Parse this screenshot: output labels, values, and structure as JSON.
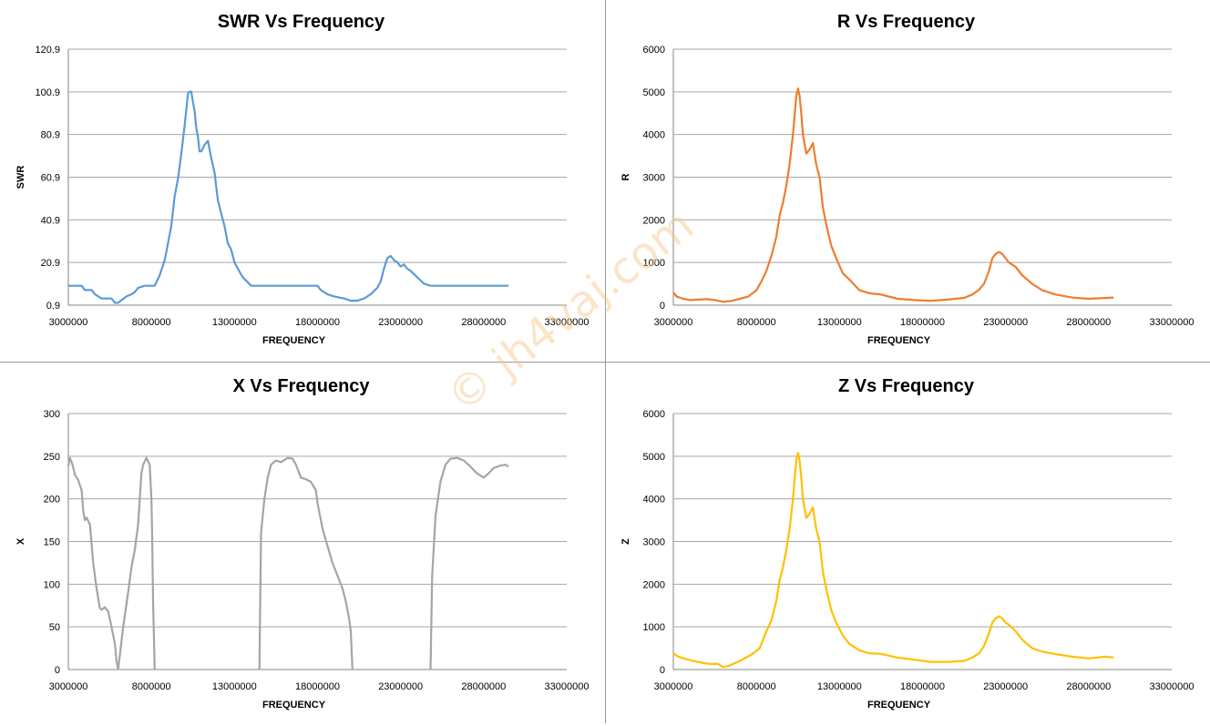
{
  "watermark": "© jh4vaj.com",
  "chart_data": [
    {
      "id": "swr",
      "type": "line",
      "title": "SWR Vs Frequency",
      "xlabel": "FREQUENCY",
      "ylabel": "SWR",
      "xlim": [
        3000000,
        33000000
      ],
      "ylim": [
        0.9,
        120.9
      ],
      "xticks": [
        "3000000",
        "8000000",
        "13000000",
        "18000000",
        "23000000",
        "28000000",
        "33000000"
      ],
      "yticks": [
        "0.9",
        "20.9",
        "40.9",
        "60.9",
        "80.9",
        "100.9",
        "120.9"
      ],
      "grid": true,
      "color": "#5b9bd5",
      "series": [
        {
          "x": [
            3000000,
            3800000,
            4000000,
            4400000,
            4600000,
            5000000,
            5600000,
            5800000,
            6000000,
            6500000,
            6800000,
            7000000,
            7200000,
            7600000,
            8000000,
            8200000,
            8500000,
            8800000,
            9000000,
            9200000,
            9400000,
            9600000,
            9800000,
            10000000,
            10200000,
            10300000,
            10400000,
            10500000,
            10600000,
            10700000,
            10800000,
            10900000,
            11000000,
            11200000,
            11400000,
            11600000,
            11800000,
            12000000,
            12200000,
            12400000,
            12600000,
            12800000,
            13000000,
            13200000,
            13500000,
            14000000,
            15000000,
            16000000,
            17000000,
            18000000,
            18200000,
            18600000,
            19000000,
            19600000,
            20000000,
            20400000,
            20800000,
            21200000,
            21600000,
            21800000,
            22000000,
            22200000,
            22400000,
            22600000,
            22800000,
            23000000,
            23200000,
            23400000,
            23600000,
            24000000,
            24400000,
            24800000,
            26000000,
            28000000,
            29500000
          ],
          "y": [
            10,
            10,
            8,
            8,
            6,
            4,
            4,
            2,
            2,
            5,
            6,
            7,
            9,
            10,
            10,
            10,
            15,
            22,
            30,
            38,
            52,
            60,
            72,
            85,
            100,
            101,
            101,
            96,
            92,
            84,
            80,
            73,
            73,
            76,
            78,
            70,
            63,
            50,
            44,
            38,
            30,
            27,
            21,
            18,
            14,
            10,
            10,
            10,
            10,
            10,
            8,
            6,
            5,
            4,
            3,
            3,
            4,
            6,
            9,
            12,
            18,
            23,
            24,
            22,
            21,
            19,
            20,
            18,
            17,
            14,
            11,
            10,
            10,
            10,
            10
          ]
        }
      ]
    },
    {
      "id": "r",
      "type": "line",
      "title": "R Vs Frequency",
      "xlabel": "FREQUENCY",
      "ylabel": "R",
      "xlim": [
        3000000,
        33000000
      ],
      "ylim": [
        0,
        6000
      ],
      "xticks": [
        "3000000",
        "8000000",
        "13000000",
        "18000000",
        "23000000",
        "28000000",
        "33000000"
      ],
      "yticks": [
        "0",
        "1000",
        "2000",
        "3000",
        "4000",
        "5000",
        "6000"
      ],
      "grid": true,
      "color": "#ed7d31",
      "series": [
        {
          "x": [
            3000000,
            3200000,
            3600000,
            4000000,
            4500000,
            5000000,
            5500000,
            6000000,
            6500000,
            7000000,
            7500000,
            8000000,
            8300000,
            8600000,
            8900000,
            9200000,
            9400000,
            9600000,
            9800000,
            10000000,
            10200000,
            10400000,
            10500000,
            10600000,
            10700000,
            10800000,
            11000000,
            11200000,
            11400000,
            11600000,
            11800000,
            12000000,
            12200000,
            12500000,
            12800000,
            13200000,
            13600000,
            14200000,
            14800000,
            15500000,
            16500000,
            17500000,
            18500000,
            19500000,
            20500000,
            21000000,
            21400000,
            21700000,
            22000000,
            22200000,
            22400000,
            22600000,
            22800000,
            23000000,
            23200000,
            23600000,
            24000000,
            24600000,
            25200000,
            26000000,
            27000000,
            28000000,
            29500000
          ],
          "y": [
            300,
            200,
            150,
            120,
            130,
            140,
            120,
            80,
            100,
            150,
            200,
            350,
            550,
            800,
            1150,
            1600,
            2100,
            2400,
            2800,
            3300,
            4000,
            4900,
            5080,
            4900,
            4500,
            4000,
            3550,
            3650,
            3800,
            3300,
            3000,
            2300,
            1900,
            1400,
            1100,
            750,
            600,
            350,
            280,
            250,
            150,
            120,
            100,
            130,
            170,
            250,
            360,
            500,
            800,
            1100,
            1200,
            1250,
            1200,
            1100,
            1000,
            900,
            700,
            500,
            350,
            250,
            180,
            150,
            180
          ]
        }
      ]
    },
    {
      "id": "x",
      "type": "line",
      "title": "X Vs Frequency",
      "xlabel": "FREQUENCY",
      "ylabel": "X",
      "xlim": [
        3000000,
        33000000
      ],
      "ylim": [
        0,
        300
      ],
      "xticks": [
        "3000000",
        "8000000",
        "13000000",
        "18000000",
        "23000000",
        "28000000",
        "33000000"
      ],
      "yticks": [
        "0",
        "50",
        "100",
        "150",
        "200",
        "250",
        "300"
      ],
      "grid": true,
      "color": "#a5a5a5",
      "series": [
        {
          "x": [
            3000000,
            3100000,
            3250000,
            3400000,
            3600000,
            3800000,
            3900000,
            4000000,
            4100000,
            4300000,
            4500000,
            4700000,
            4900000,
            5000000,
            5200000,
            5400000,
            5600000,
            5800000,
            5900000,
            6000000
          ],
          "y": [
            238,
            248,
            240,
            228,
            222,
            210,
            185,
            175,
            178,
            170,
            125,
            95,
            72,
            70,
            73,
            68,
            50,
            30,
            10,
            0
          ]
        },
        {
          "x": [
            6000000,
            6300000,
            6600000,
            6800000,
            7000000,
            7200000,
            7400000,
            7500000,
            7700000,
            7900000,
            8000000,
            8050000,
            8100000,
            8200000
          ],
          "y": [
            0,
            50,
            90,
            120,
            140,
            170,
            230,
            240,
            248,
            240,
            200,
            150,
            80,
            0
          ]
        },
        {
          "x": [
            14500000,
            14600000,
            14800000,
            15000000,
            15200000,
            15500000,
            15800000,
            16200000,
            16500000,
            16700000,
            17000000,
            17300000,
            17600000,
            17900000,
            18000000,
            18300000,
            18600000,
            18900000,
            19200000,
            19500000,
            19700000,
            19900000,
            20000000,
            20100000
          ],
          "y": [
            0,
            160,
            200,
            225,
            240,
            245,
            243,
            248,
            247,
            240,
            225,
            223,
            220,
            210,
            195,
            165,
            145,
            125,
            110,
            95,
            80,
            60,
            45,
            0
          ]
        },
        {
          "x": [
            24800000,
            24900000,
            25100000,
            25400000,
            25700000,
            26000000,
            26400000,
            26800000,
            27200000,
            27600000,
            28000000,
            28300000,
            28600000,
            29000000,
            29300000,
            29500000
          ],
          "y": [
            0,
            110,
            180,
            220,
            240,
            247,
            248,
            245,
            238,
            230,
            225,
            230,
            236,
            239,
            240,
            238
          ]
        }
      ]
    },
    {
      "id": "z",
      "type": "line",
      "title": "Z Vs Frequency",
      "xlabel": "FREQUENCY",
      "ylabel": "Z",
      "xlim": [
        3000000,
        33000000
      ],
      "ylim": [
        0,
        6000
      ],
      "xticks": [
        "3000000",
        "8000000",
        "13000000",
        "18000000",
        "23000000",
        "28000000",
        "33000000"
      ],
      "yticks": [
        "0",
        "1000",
        "2000",
        "3000",
        "4000",
        "5000",
        "6000"
      ],
      "grid": true,
      "color": "#ffc000",
      "series": [
        {
          "x": [
            3000000,
            3300000,
            3700000,
            4200000,
            4700000,
            5200000,
            5700000,
            6000000,
            6300000,
            7000000,
            7700000,
            8200000,
            8600000,
            8900000,
            9200000,
            9400000,
            9600000,
            9800000,
            10000000,
            10200000,
            10400000,
            10500000,
            10600000,
            10700000,
            10800000,
            11000000,
            11200000,
            11400000,
            11600000,
            11800000,
            12000000,
            12200000,
            12500000,
            12800000,
            13200000,
            13600000,
            14200000,
            14800000,
            15500000,
            16500000,
            17500000,
            18500000,
            19500000,
            20500000,
            21000000,
            21400000,
            21700000,
            22000000,
            22200000,
            22400000,
            22600000,
            22800000,
            23000000,
            23200000,
            23600000,
            24000000,
            24600000,
            25200000,
            26000000,
            27000000,
            28000000,
            29000000,
            29500000
          ],
          "y": [
            380,
            300,
            250,
            200,
            160,
            130,
            130,
            60,
            80,
            200,
            350,
            500,
            900,
            1150,
            1600,
            2100,
            2400,
            2800,
            3300,
            4000,
            4900,
            5080,
            4900,
            4500,
            4000,
            3550,
            3650,
            3800,
            3300,
            3000,
            2300,
            1900,
            1400,
            1100,
            800,
            600,
            450,
            380,
            370,
            280,
            230,
            180,
            180,
            200,
            280,
            380,
            550,
            850,
            1100,
            1200,
            1250,
            1200,
            1100,
            1050,
            900,
            700,
            500,
            420,
            360,
            300,
            260,
            300,
            280
          ]
        }
      ]
    }
  ]
}
